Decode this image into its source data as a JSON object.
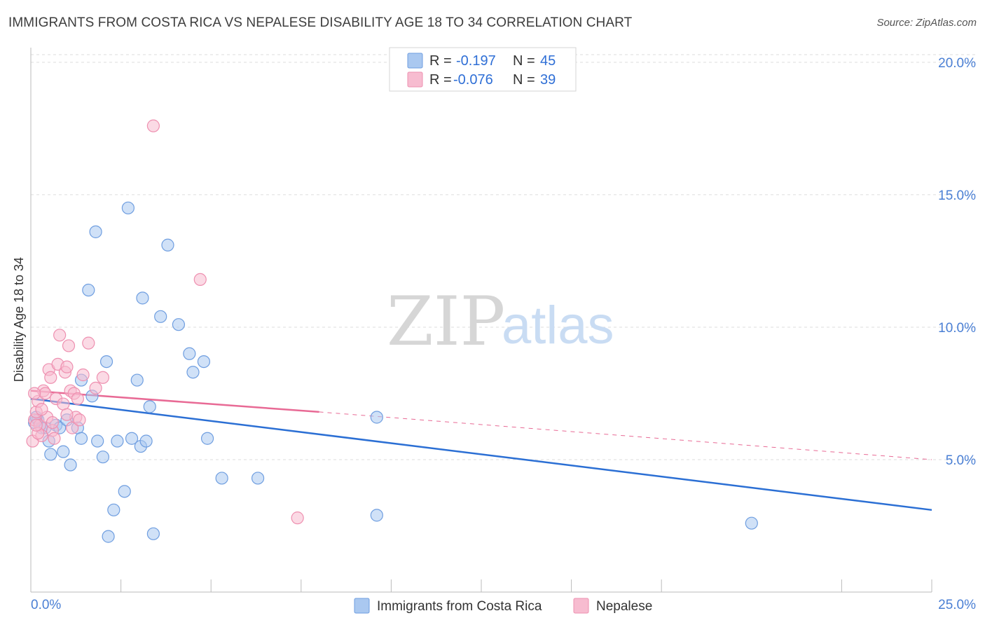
{
  "title": "IMMIGRANTS FROM COSTA RICA VS NEPALESE DISABILITY AGE 18 TO 34 CORRELATION CHART",
  "source": "Source: ZipAtlas.com",
  "watermark": {
    "zip": "ZIP",
    "atlas": "atlas"
  },
  "colors": {
    "blue_fill": "#aac8f0",
    "blue_stroke": "#6f9ee0",
    "blue_line": "#2b6fd4",
    "pink_fill": "#f7bcd0",
    "pink_stroke": "#ee90b0",
    "pink_line": "#e86a95",
    "tick_label": "#4a7fd4",
    "grid": "#dddddd"
  },
  "legend": {
    "rows": [
      {
        "r_label": "R =",
        "r_value": "-0.197",
        "n_label": "N =",
        "n_value": "45"
      },
      {
        "r_label": "R =",
        "r_value": "-0.076",
        "n_label": "N =",
        "n_value": "39"
      }
    ]
  },
  "chart_data": {
    "type": "scatter",
    "xlabel": "",
    "ylabel": "Disability Age 18 to 34",
    "xlim": [
      0,
      25
    ],
    "ylim": [
      0,
      20.5
    ],
    "x_tick_labels": [
      "0.0%",
      "25.0%"
    ],
    "y_ticks": [
      5,
      10,
      15,
      20
    ],
    "y_tick_labels": [
      "5.0%",
      "10.0%",
      "15.0%",
      "20.0%"
    ],
    "grid": "horizontal dashed",
    "legend_position": "top-center and bottom",
    "series": [
      {
        "name": "Immigrants from Costa Rica",
        "color": "blue",
        "points": [
          [
            0.1,
            6.4
          ],
          [
            0.2,
            6.5
          ],
          [
            0.3,
            6.2
          ],
          [
            0.4,
            6.2
          ],
          [
            0.5,
            5.7
          ],
          [
            0.55,
            5.2
          ],
          [
            0.7,
            6.3
          ],
          [
            0.8,
            6.2
          ],
          [
            0.9,
            5.3
          ],
          [
            1.0,
            6.5
          ],
          [
            1.1,
            4.8
          ],
          [
            1.3,
            6.2
          ],
          [
            1.4,
            5.8
          ],
          [
            1.4,
            8.0
          ],
          [
            1.6,
            11.4
          ],
          [
            1.7,
            7.4
          ],
          [
            1.8,
            13.6
          ],
          [
            1.85,
            5.7
          ],
          [
            2.0,
            5.1
          ],
          [
            2.1,
            8.7
          ],
          [
            2.15,
            2.1
          ],
          [
            2.3,
            3.1
          ],
          [
            2.4,
            5.7
          ],
          [
            2.6,
            3.8
          ],
          [
            2.7,
            14.5
          ],
          [
            2.8,
            5.8
          ],
          [
            2.95,
            8.0
          ],
          [
            3.05,
            5.5
          ],
          [
            3.1,
            11.1
          ],
          [
            3.2,
            5.7
          ],
          [
            3.3,
            7.0
          ],
          [
            3.4,
            2.2
          ],
          [
            3.6,
            10.4
          ],
          [
            3.8,
            13.1
          ],
          [
            4.1,
            10.1
          ],
          [
            4.4,
            9.0
          ],
          [
            4.5,
            8.3
          ],
          [
            4.8,
            8.7
          ],
          [
            4.9,
            5.8
          ],
          [
            5.3,
            4.3
          ],
          [
            6.3,
            4.3
          ],
          [
            9.6,
            6.6
          ],
          [
            9.6,
            2.9
          ],
          [
            20.0,
            2.6
          ],
          [
            0.15,
            6.6
          ]
        ],
        "trend": {
          "x": [
            0,
            25
          ],
          "y": [
            7.3,
            3.1
          ]
        }
      },
      {
        "name": "Nepalese",
        "color": "pink",
        "points": [
          [
            0.05,
            5.7
          ],
          [
            0.1,
            6.5
          ],
          [
            0.15,
            6.8
          ],
          [
            0.2,
            7.2
          ],
          [
            0.25,
            6.3
          ],
          [
            0.3,
            5.9
          ],
          [
            0.35,
            7.6
          ],
          [
            0.4,
            7.5
          ],
          [
            0.45,
            6.6
          ],
          [
            0.5,
            8.4
          ],
          [
            0.55,
            8.1
          ],
          [
            0.6,
            6.1
          ],
          [
            0.65,
            5.8
          ],
          [
            0.7,
            7.3
          ],
          [
            0.75,
            8.6
          ],
          [
            0.8,
            9.7
          ],
          [
            0.9,
            7.1
          ],
          [
            0.95,
            8.3
          ],
          [
            1.0,
            8.5
          ],
          [
            1.05,
            9.3
          ],
          [
            1.1,
            7.6
          ],
          [
            1.15,
            6.2
          ],
          [
            1.2,
            7.5
          ],
          [
            1.25,
            6.6
          ],
          [
            1.3,
            7.3
          ],
          [
            1.35,
            6.5
          ],
          [
            1.45,
            8.2
          ],
          [
            1.6,
            9.4
          ],
          [
            1.8,
            7.7
          ],
          [
            2.0,
            8.1
          ],
          [
            3.4,
            17.6
          ],
          [
            4.7,
            11.8
          ],
          [
            7.4,
            2.8
          ],
          [
            0.1,
            7.5
          ],
          [
            0.2,
            6.0
          ],
          [
            0.3,
            6.9
          ],
          [
            0.6,
            6.4
          ],
          [
            1.0,
            6.7
          ],
          [
            0.15,
            6.3
          ]
        ],
        "trend": {
          "x": [
            0,
            8.0
          ],
          "y": [
            7.6,
            6.8
          ]
        },
        "trend_dashed": {
          "x": [
            8.0,
            25
          ],
          "y": [
            6.8,
            5.0
          ]
        }
      }
    ]
  }
}
